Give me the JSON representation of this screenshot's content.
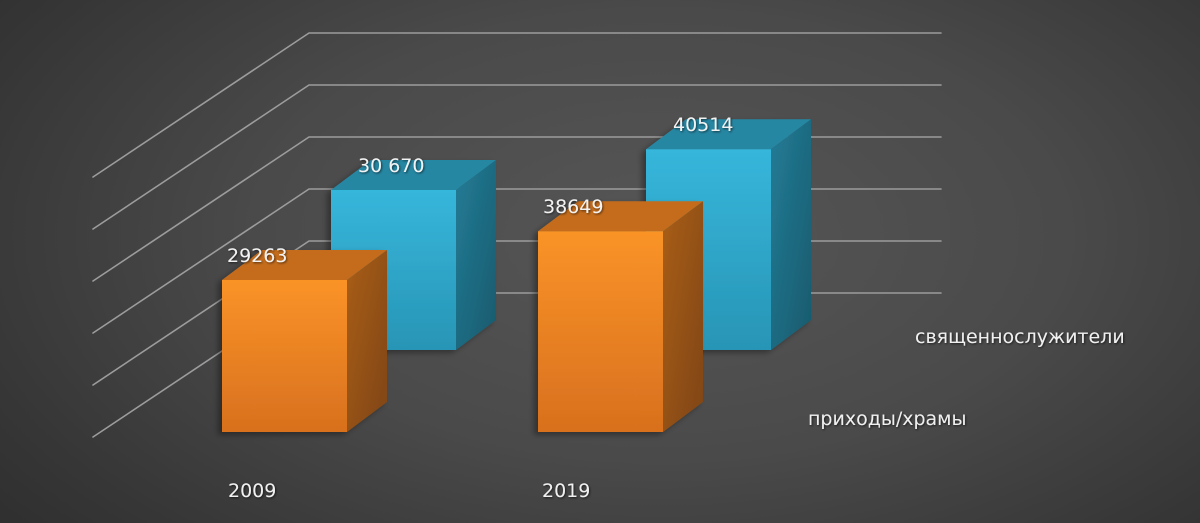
{
  "chart_data": {
    "type": "bar",
    "style": "3d-clustered-column",
    "title": "",
    "xlabel": "",
    "ylabel": "",
    "categories": [
      "2009",
      "2019"
    ],
    "series": [
      {
        "name": "приходы/храмы",
        "color": "#F28A24",
        "values": [
          29263,
          38649
        ],
        "labels": [
          "29263",
          "38649"
        ]
      },
      {
        "name": "священнослужители",
        "color": "#31B0D5",
        "values": [
          30670,
          40514
        ],
        "labels": [
          "30 670",
          "40514"
        ]
      }
    ],
    "grid": true,
    "gridline_count": 6,
    "value_axis_visible": false,
    "legend_position": "right (series labels on depth axis)"
  },
  "colors": {
    "background": "#4a4a4a",
    "gridline": "#9a9a9a",
    "orange_front": "#F28A24",
    "orange_top": "#C96E1E",
    "orange_side": "#9A5416",
    "blue_front": "#33B2D6",
    "blue_top": "#2889A6",
    "blue_side": "#1E6F86",
    "text": "#F2F2F2"
  }
}
